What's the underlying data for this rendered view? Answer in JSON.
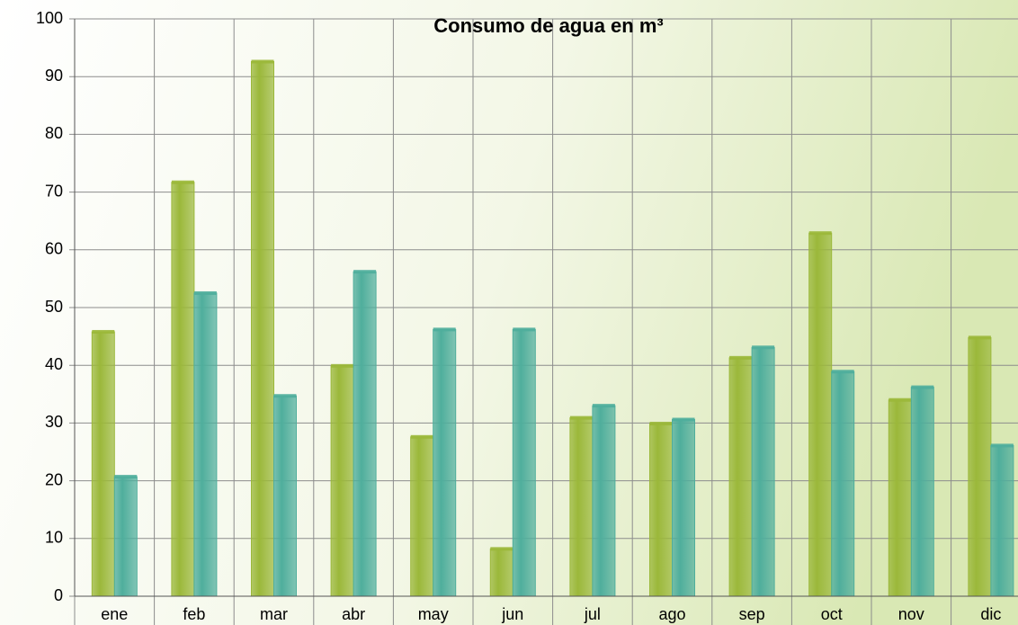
{
  "chart_data": {
    "type": "bar",
    "title": "Consumo de agua en m³",
    "categories": [
      "ene",
      "feb",
      "mar",
      "abr",
      "may",
      "jun",
      "jul",
      "ago",
      "sep",
      "oct",
      "nov",
      "dic"
    ],
    "series": [
      {
        "color": "#9bb83a",
        "values": [
          45.8,
          71.7,
          92.6,
          39.9,
          27.6,
          8.2,
          30.9,
          29.9,
          41.3,
          62.9,
          34,
          44.8
        ]
      },
      {
        "color": "#4fae9c",
        "values": [
          20.7,
          52.5,
          34.7,
          56.2,
          46.2,
          46.2,
          33,
          30.6,
          43.1,
          38.9,
          36.2,
          26.1
        ]
      }
    ],
    "ylim": [
      0,
      100
    ],
    "yticks": [
      0,
      10,
      20,
      30,
      40,
      50,
      60,
      70,
      80,
      90,
      100
    ],
    "grid": true
  }
}
